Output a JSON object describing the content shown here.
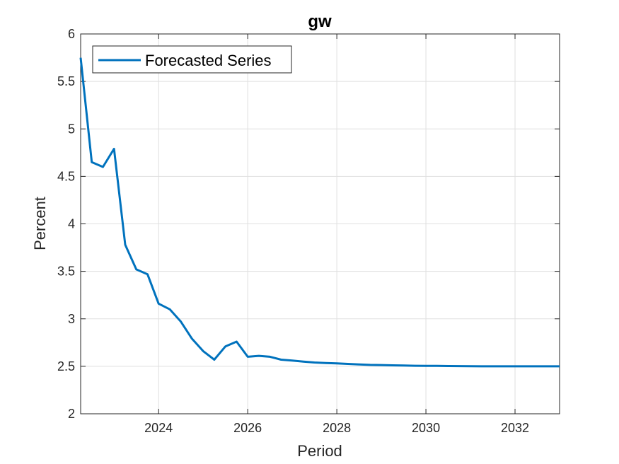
{
  "chart_data": {
    "type": "line",
    "title": "gw",
    "xlabel": "Period",
    "ylabel": "Percent",
    "xlim": [
      2022.25,
      2033.0
    ],
    "ylim": [
      2,
      6
    ],
    "xticks": [
      2024,
      2026,
      2028,
      2030,
      2032
    ],
    "xtick_labels": [
      "2024",
      "2026",
      "2028",
      "2030",
      "2032"
    ],
    "yticks": [
      2,
      2.5,
      3,
      3.5,
      4,
      4.5,
      5,
      5.5,
      6
    ],
    "ytick_labels": [
      "2",
      "2.5",
      "3",
      "3.5",
      "4",
      "4.5",
      "5",
      "5.5",
      "6"
    ],
    "grid": true,
    "legend_position": "top-left",
    "series": [
      {
        "name": "Forecasted Series",
        "color": "#0072BD",
        "x": [
          2022.25,
          2022.5,
          2022.75,
          2023.0,
          2023.25,
          2023.5,
          2023.75,
          2024.0,
          2024.25,
          2024.5,
          2024.75,
          2025.0,
          2025.25,
          2025.5,
          2025.75,
          2026.0,
          2026.25,
          2026.5,
          2026.75,
          2027.0,
          2027.25,
          2027.5,
          2027.75,
          2028.0,
          2028.25,
          2028.5,
          2028.75,
          2029.0,
          2029.25,
          2029.5,
          2029.75,
          2030.0,
          2030.25,
          2030.5,
          2030.75,
          2031.0,
          2031.25,
          2031.5,
          2031.75,
          2032.0,
          2032.25,
          2032.5,
          2032.75,
          2033.0
        ],
        "values": [
          5.75,
          4.65,
          4.6,
          4.79,
          3.78,
          3.52,
          3.47,
          3.16,
          3.1,
          2.97,
          2.79,
          2.66,
          2.57,
          2.71,
          2.76,
          2.6,
          2.61,
          2.6,
          2.57,
          2.56,
          2.55,
          2.54,
          2.535,
          2.53,
          2.525,
          2.52,
          2.515,
          2.513,
          2.51,
          2.508,
          2.506,
          2.505,
          2.504,
          2.503,
          2.502,
          2.501,
          2.5,
          2.5,
          2.5,
          2.5,
          2.5,
          2.5,
          2.5,
          2.5
        ]
      }
    ]
  }
}
